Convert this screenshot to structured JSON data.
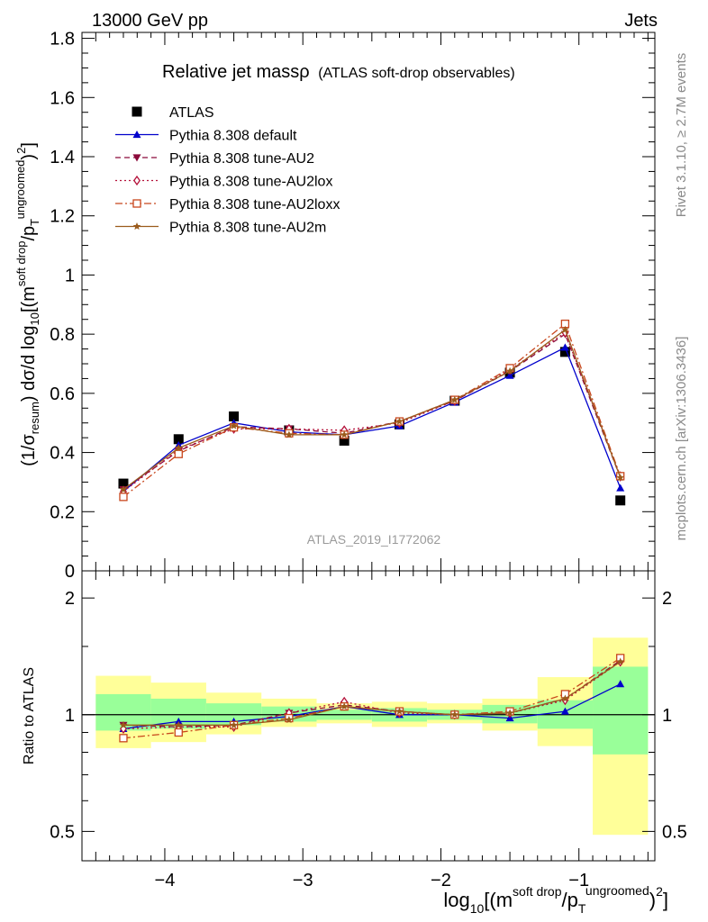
{
  "header": {
    "energy_label": "13000 GeV pp",
    "process_label": "Jets"
  },
  "side_labels": {
    "rivet": "Rivet 3.1.10, ≥ 2.7M events",
    "mcplots": "mcplots.cern.ch [arXiv:1306.3436]"
  },
  "title": {
    "main": "Relative jet massρ",
    "sub": "(ATLAS soft-drop observables)"
  },
  "watermark": "ATLAS_2019_I1772062",
  "ylabel_top": {
    "pre": "(1/σ",
    "sub1": "resum",
    "mid": ") dσ/d log",
    "sub2": "10",
    "post1": "[(m",
    "sup1": "soft drop",
    "post2": "/p",
    "sub3": "T",
    "sup2": "ungroomed",
    "post3": ")",
    "sup3": "2",
    "post4": "]"
  },
  "ylabel_bottom": "Ratio to ATLAS",
  "xlabel": {
    "pre": "log",
    "sub1": "10",
    "post1": "[(m",
    "sup1": "soft drop",
    "post2": "/p",
    "sub2": "T",
    "sup2": "ungroomed",
    "post3": ")",
    "sup3": "2",
    "post4": "]"
  },
  "chart_data": [
    {
      "type": "scatter",
      "panel": "main",
      "x": [
        -4.3,
        -3.9,
        -3.5,
        -3.1,
        -2.7,
        -2.3,
        -1.9,
        -1.5,
        -1.1,
        -0.7
      ],
      "xlim": [
        -4.6,
        -0.45
      ],
      "ylim": [
        0,
        1.82
      ],
      "yticks": [
        0,
        0.2,
        0.4,
        0.6,
        0.8,
        1,
        1.2,
        1.4,
        1.6,
        1.8
      ],
      "ytick_labels": [
        "0",
        "0.2",
        "0.4",
        "0.6",
        "0.8",
        "1",
        "1.2",
        "1.4",
        "1.6",
        "1.8"
      ],
      "legend_position": "top-left",
      "series": [
        {
          "name": "ATLAS",
          "marker": "square",
          "color": "#000000",
          "line": "none",
          "values": [
            0.295,
            0.445,
            0.522,
            0.475,
            0.44,
            0.495,
            0.575,
            0.67,
            0.74,
            0.238
          ]
        },
        {
          "name": "Pythia 8.308 default",
          "marker": "triangle-up",
          "color": "#0000cc",
          "line": "solid",
          "values": [
            0.268,
            0.425,
            0.5,
            0.47,
            0.46,
            0.49,
            0.57,
            0.66,
            0.755,
            0.28
          ]
        },
        {
          "name": "Pythia 8.308 tune-AU2",
          "marker": "triangle-down",
          "color": "#8b0a3a",
          "line": "dashed",
          "values": [
            0.275,
            0.405,
            0.487,
            0.48,
            0.465,
            0.505,
            0.575,
            0.675,
            0.8,
            0.315
          ]
        },
        {
          "name": "Pythia 8.308 tune-AU2lox",
          "marker": "diamond-open",
          "color": "#b5123a",
          "line": "dotted",
          "values": [
            0.268,
            0.41,
            0.48,
            0.48,
            0.475,
            0.5,
            0.575,
            0.68,
            0.805,
            0.32
          ]
        },
        {
          "name": "Pythia 8.308 tune-AU2loxx",
          "marker": "square-open",
          "color": "#c8461c",
          "line": "dashdot",
          "values": [
            0.25,
            0.395,
            0.485,
            0.465,
            0.46,
            0.505,
            0.578,
            0.685,
            0.835,
            0.32
          ]
        },
        {
          "name": "Pythia 8.308 tune-AU2m",
          "marker": "star",
          "color": "#9a5b1c",
          "line": "solid",
          "values": [
            0.275,
            0.415,
            0.49,
            0.46,
            0.46,
            0.505,
            0.578,
            0.675,
            0.815,
            0.315
          ]
        }
      ]
    },
    {
      "type": "line",
      "panel": "ratio",
      "x": [
        -4.3,
        -3.9,
        -3.5,
        -3.1,
        -2.7,
        -2.3,
        -1.9,
        -1.5,
        -1.1,
        -0.7
      ],
      "xlim": [
        -4.6,
        -0.45
      ],
      "ylim": [
        0.42,
        2.35
      ],
      "yscale": "log",
      "yticks": [
        0.5,
        1,
        2
      ],
      "ytick_labels": [
        "0.5",
        "1",
        "2"
      ],
      "xticks": [
        -4,
        -3,
        -2,
        -1
      ],
      "xtick_labels": [
        "−4",
        "−3",
        "−2",
        "−1"
      ],
      "bins": [
        [
          -4.5,
          -4.1
        ],
        [
          -4.1,
          -3.7
        ],
        [
          -3.7,
          -3.3
        ],
        [
          -3.3,
          -2.9
        ],
        [
          -2.9,
          -2.5
        ],
        [
          -2.5,
          -2.1
        ],
        [
          -2.1,
          -1.7
        ],
        [
          -1.7,
          -1.3
        ],
        [
          -1.3,
          -0.9
        ],
        [
          -0.9,
          -0.5
        ]
      ],
      "band_inner": [
        [
          0.91,
          1.13
        ],
        [
          0.92,
          1.1
        ],
        [
          0.94,
          1.07
        ],
        [
          0.96,
          1.05
        ],
        [
          0.97,
          1.03
        ],
        [
          0.96,
          1.04
        ],
        [
          0.97,
          1.03
        ],
        [
          0.95,
          1.06
        ],
        [
          0.92,
          1.09
        ],
        [
          0.79,
          1.33
        ]
      ],
      "band_outer": [
        [
          0.82,
          1.26
        ],
        [
          0.85,
          1.21
        ],
        [
          0.89,
          1.14
        ],
        [
          0.93,
          1.1
        ],
        [
          0.95,
          1.07
        ],
        [
          0.93,
          1.08
        ],
        [
          0.95,
          1.07
        ],
        [
          0.91,
          1.1
        ],
        [
          0.83,
          1.25
        ],
        [
          0.49,
          1.58
        ]
      ],
      "series": [
        {
          "name": "Pythia 8.308 default",
          "color": "#0000cc",
          "marker": "triangle-up",
          "values": [
            0.92,
            0.96,
            0.96,
            0.99,
            1.05,
            1.0,
            1.0,
            0.98,
            1.02,
            1.2
          ]
        },
        {
          "name": "Pythia 8.308 tune-AU2",
          "color": "#8b0a3a",
          "marker": "triangle-down",
          "values": [
            0.94,
            0.93,
            0.94,
            1.01,
            1.06,
            1.02,
            1.0,
            1.01,
            1.1,
            1.38
          ]
        },
        {
          "name": "Pythia 8.308 tune-AU2lox",
          "color": "#b5123a",
          "marker": "diamond-open",
          "values": [
            0.92,
            0.93,
            0.93,
            1.01,
            1.08,
            1.01,
            1.0,
            1.01,
            1.09,
            1.37
          ]
        },
        {
          "name": "Pythia 8.308 tune-AU2loxx",
          "color": "#c8461c",
          "marker": "square-open",
          "values": [
            0.87,
            0.9,
            0.94,
            0.98,
            1.05,
            1.02,
            1.0,
            1.02,
            1.13,
            1.4
          ]
        },
        {
          "name": "Pythia 8.308 tune-AU2m",
          "color": "#9a5b1c",
          "marker": "star",
          "values": [
            0.94,
            0.94,
            0.94,
            0.97,
            1.05,
            1.02,
            1.0,
            1.01,
            1.1,
            1.37
          ]
        }
      ]
    }
  ]
}
